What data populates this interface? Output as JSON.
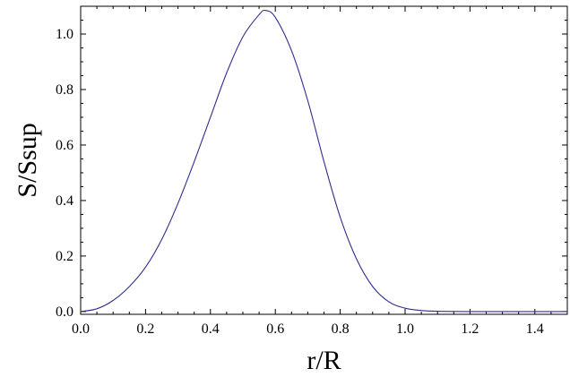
{
  "chart_data": {
    "type": "line",
    "title": "",
    "xlabel": "r/R",
    "ylabel": "S/Ssup",
    "xlim": [
      0,
      1.5
    ],
    "ylim": [
      -0.01,
      1.1
    ],
    "x_ticks": [
      0.0,
      0.2,
      0.4,
      0.6,
      0.8,
      1.0,
      1.2,
      1.4
    ],
    "x_tick_labels": [
      "0.0",
      "0.2",
      "0.4",
      "0.6",
      "0.8",
      "1.0",
      "1.2",
      "1.4"
    ],
    "y_ticks": [
      0.0,
      0.2,
      0.4,
      0.6,
      0.8,
      1.0
    ],
    "y_tick_labels": [
      "0.0",
      "0.2",
      "0.4",
      "0.6",
      "0.8",
      "1.0"
    ],
    "grid": false,
    "line_color": "#2e2e8f",
    "series": [
      {
        "x": [
          0.0,
          0.05,
          0.1,
          0.15,
          0.2,
          0.25,
          0.3,
          0.35,
          0.4,
          0.45,
          0.5,
          0.55,
          0.57,
          0.6,
          0.65,
          0.7,
          0.75,
          0.8,
          0.85,
          0.9,
          0.95,
          1.0,
          1.05,
          1.1,
          1.2,
          1.3,
          1.4,
          1.5
        ],
        "y": [
          0.0,
          0.01,
          0.04,
          0.09,
          0.16,
          0.26,
          0.39,
          0.54,
          0.7,
          0.86,
          0.99,
          1.07,
          1.085,
          1.06,
          0.94,
          0.76,
          0.54,
          0.34,
          0.19,
          0.09,
          0.035,
          0.012,
          0.004,
          0.001,
          0.0,
          0.0,
          0.0,
          0.0
        ]
      }
    ]
  }
}
